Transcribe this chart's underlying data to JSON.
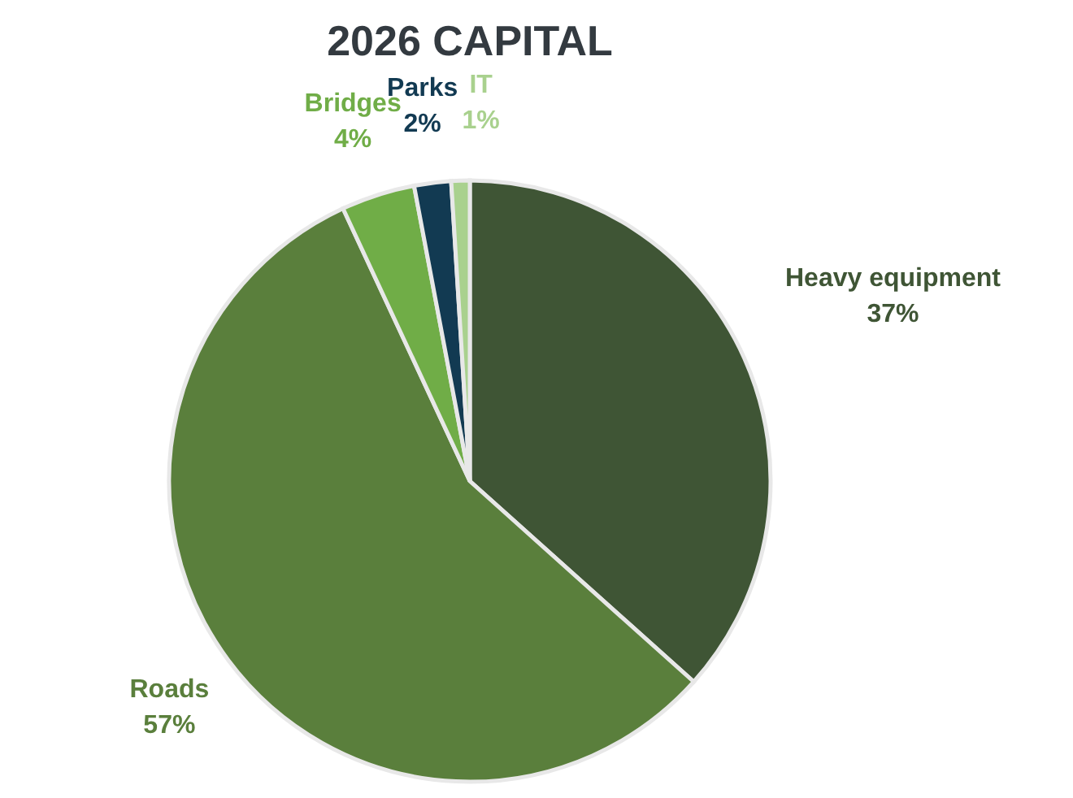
{
  "chart_data": {
    "type": "pie",
    "title": "2026 CAPITAL",
    "categories": [
      "Heavy equipment",
      "Roads",
      "Bridges",
      "Parks",
      "IT"
    ],
    "values": [
      37,
      57,
      4,
      2,
      1
    ],
    "value_labels": [
      "37%",
      "57%",
      "4%",
      "2%",
      "1%"
    ],
    "colors": [
      "#3f5535",
      "#5a7f3c",
      "#70ad47",
      "#123a52",
      "#a9d18e"
    ]
  }
}
